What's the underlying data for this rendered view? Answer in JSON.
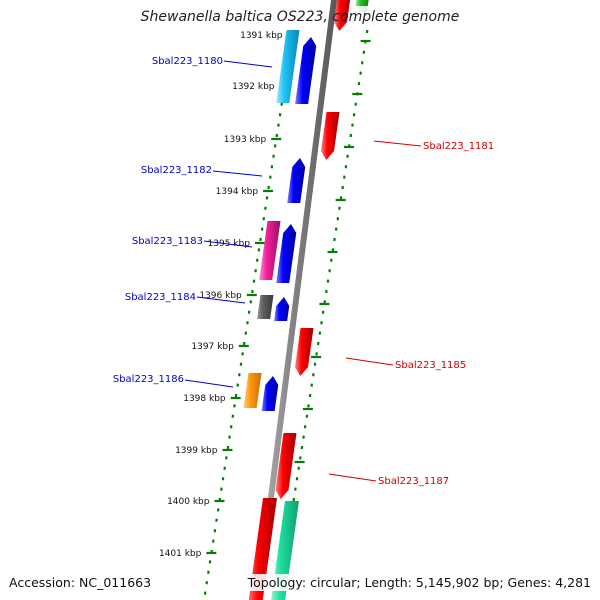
{
  "map": {
    "title": "Shewanella baltica OS223, complete genome",
    "accession": "Accession: NC_011663",
    "summary": "Topology: circular; Length: 5,145,902 bp; Genes: 4,281",
    "colors": {
      "backbone": "#7f7f7f",
      "ticks": "#007f00",
      "label_left": "#0000cc",
      "label_right": "#cc0000"
    },
    "tick_labels": [
      "1391 kbp",
      "1392 kbp",
      "1393 kbp",
      "1394 kbp",
      "1395 kbp",
      "1396 kbp",
      "1397 kbp",
      "1398 kbp",
      "1399 kbp",
      "1400 kbp",
      "1401 kbp"
    ],
    "gene_labels_left": [
      "Sbal223_1180",
      "Sbal223_1182",
      "Sbal223_1183",
      "Sbal223_1184",
      "Sbal223_1186"
    ],
    "gene_labels_right": [
      "Sbal223_1181",
      "Sbal223_1185",
      "Sbal223_1187"
    ]
  }
}
